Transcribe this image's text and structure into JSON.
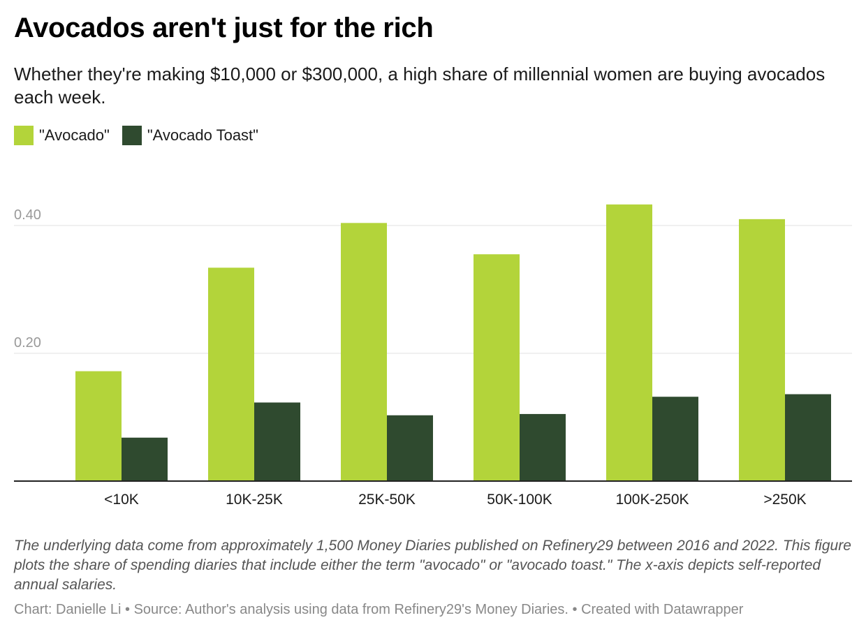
{
  "title": "Avocados aren't just for the rich",
  "subtitle": "Whether they're making $10,000 or $300,000, a high share of millennial women are buying avocados each week.",
  "notes": "The underlying data come from approximately 1,500 Money Diaries published on Refinery29 between 2016 and 2022. This figure plots the share of spending diaries that include either the term \"avocado\" or \"avocado toast.\" The x-axis depicts self-reported annual salaries.",
  "footer": {
    "chart_credit": "Chart: Danielle Li",
    "separator": "•",
    "source": "Source: Author's analysis using data from Refinery29's Money Diaries.",
    "created_with": "Created with Datawrapper"
  },
  "chart_data": {
    "type": "bar",
    "title": "Avocados aren't just for the rich",
    "xlabel": "",
    "ylabel": "",
    "categories": [
      "<10K",
      "10K-25K",
      "25K-50K",
      "50K-100K",
      "100K-250K",
      ">250K"
    ],
    "series": [
      {
        "name": "\"Avocado\"",
        "color": "#b3d43a",
        "values": [
          0.172,
          0.334,
          0.404,
          0.355,
          0.433,
          0.41
        ]
      },
      {
        "name": "\"Avocado Toast\"",
        "color": "#2f4a2f",
        "values": [
          0.068,
          0.123,
          0.103,
          0.105,
          0.132,
          0.136
        ]
      }
    ],
    "ylim": [
      0,
      0.5
    ],
    "yticks": [
      0.2,
      0.4
    ],
    "ytick_labels": [
      "0.20",
      "0.40"
    ],
    "grid": true,
    "legend_position": "top-left"
  }
}
